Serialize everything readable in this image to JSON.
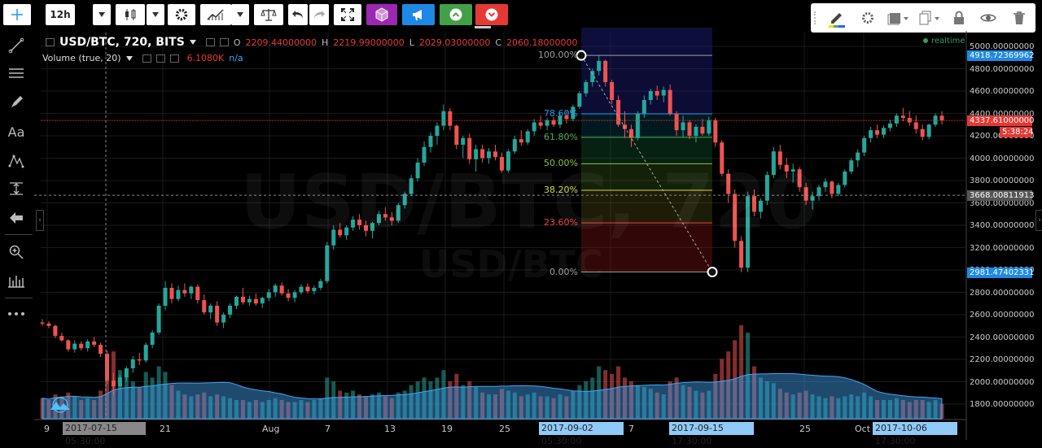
{
  "toolbar": {
    "interval": "12h"
  },
  "legend": {
    "symbol": "USD/BTC, 720, BITS",
    "o_label": "O",
    "o_value": "2209.44000000",
    "h_label": "H",
    "h_value": "2219.99000000",
    "l_label": "L",
    "l_value": "2029.03000000",
    "c_label": "C",
    "c_value": "2060.18000000",
    "volume_label": "Volume (true, 20)",
    "volume_value": "6.1080K",
    "volume_na": "n/a"
  },
  "realtime": "realtime",
  "watermark": {
    "main": "USD/BTC, 720",
    "sub": "USD/BTC"
  },
  "colors": {
    "up": "#26a69a",
    "down": "#ef5350",
    "accent": "#1e88e5",
    "price_line": "#e53935"
  },
  "price_axis": {
    "ticks": [
      "5000.00000000",
      "4800.00000000",
      "4600.00000000",
      "4400.00000000",
      "4200.00000000",
      "4000.00000000",
      "3800.00000000",
      "3600.00000000",
      "3400.00000000",
      "3200.00000000",
      "3000.00000000",
      "2800.00000000",
      "2600.00000000",
      "2400.00000000",
      "2200.00000000",
      "2000.00000000",
      "1800.00000000"
    ],
    "marker_top": "4918.72369962",
    "marker_current": "4337.61000000",
    "marker_countdown": "5:38:24",
    "marker_cross": "3668.00811913",
    "marker_bottom": "2981.47402331"
  },
  "time_axis": {
    "ticks": [
      "9",
      "21",
      "Aug",
      "7",
      "13",
      "19",
      "25",
      "7",
      "25",
      "Oct"
    ],
    "highlight_cross": "2017-07-15 05:30:00",
    "highlight_start": "2017-09-02 05:30:00",
    "highlight_end": "2017-09-15 17:30:00",
    "highlight_last": "2017-10-06 17:30:00"
  },
  "fib": {
    "levels": [
      {
        "label": "100.00%",
        "value": 4918.72,
        "color": "#9e9e9e"
      },
      {
        "label": "78.60%",
        "value": 4396.0,
        "color": "#2196f3"
      },
      {
        "label": "61.80%",
        "value": 4186.0,
        "color": "#4caf50"
      },
      {
        "label": "50.00%",
        "value": 3950.0,
        "color": "#8bc34a"
      },
      {
        "label": "38.20%",
        "value": 3713.0,
        "color": "#cddc39"
      },
      {
        "label": "23.60%",
        "value": 3421.0,
        "color": "#f44336"
      },
      {
        "label": "0.00%",
        "value": 2981.47,
        "color": "#9e9e9e"
      }
    ]
  },
  "chart_data": {
    "type": "candlestick",
    "ylim": [
      1700,
      5100
    ],
    "columns": [
      "o",
      "h",
      "l",
      "c",
      "v"
    ],
    "candles": [
      [
        2530,
        2560,
        2500,
        2520,
        1.1
      ],
      [
        2520,
        2540,
        2480,
        2500,
        1.0
      ],
      [
        2500,
        2510,
        2390,
        2410,
        1.3
      ],
      [
        2410,
        2440,
        2360,
        2370,
        1.2
      ],
      [
        2370,
        2380,
        2270,
        2290,
        1.4
      ],
      [
        2290,
        2370,
        2260,
        2340,
        1.2
      ],
      [
        2340,
        2360,
        2280,
        2300,
        1.0
      ],
      [
        2300,
        2380,
        2270,
        2360,
        1.1
      ],
      [
        2360,
        2400,
        2310,
        2330,
        1.0
      ],
      [
        2330,
        2350,
        2220,
        2250,
        1.5
      ],
      [
        2250,
        2280,
        1980,
        2010,
        3.0
      ],
      [
        2010,
        2080,
        1880,
        1960,
        3.6
      ],
      [
        1960,
        2060,
        1930,
        2040,
        2.6
      ],
      [
        2040,
        2140,
        2000,
        2120,
        2.3
      ],
      [
        2120,
        2230,
        2080,
        2200,
        2.0
      ],
      [
        2200,
        2260,
        2150,
        2190,
        1.7
      ],
      [
        2190,
        2350,
        2170,
        2330,
        2.5
      ],
      [
        2330,
        2460,
        2300,
        2440,
        2.2
      ],
      [
        2440,
        2700,
        2420,
        2680,
        2.8
      ],
      [
        2680,
        2900,
        2640,
        2840,
        2.5
      ],
      [
        2840,
        2880,
        2700,
        2740,
        1.8
      ],
      [
        2740,
        2860,
        2720,
        2820,
        1.5
      ],
      [
        2820,
        2880,
        2760,
        2790,
        1.3
      ],
      [
        2790,
        2860,
        2740,
        2850,
        1.2
      ],
      [
        2850,
        2870,
        2700,
        2730,
        1.3
      ],
      [
        2730,
        2780,
        2600,
        2620,
        1.4
      ],
      [
        2620,
        2700,
        2560,
        2680,
        1.2
      ],
      [
        2680,
        2720,
        2500,
        2530,
        1.3
      ],
      [
        2530,
        2620,
        2480,
        2600,
        1.2
      ],
      [
        2600,
        2700,
        2570,
        2680,
        1.1
      ],
      [
        2680,
        2770,
        2650,
        2760,
        1.0
      ],
      [
        2760,
        2840,
        2690,
        2710,
        1.0
      ],
      [
        2710,
        2770,
        2680,
        2740,
        0.9
      ],
      [
        2740,
        2790,
        2680,
        2700,
        1.0
      ],
      [
        2700,
        2760,
        2660,
        2750,
        0.9
      ],
      [
        2750,
        2830,
        2720,
        2800,
        1.0
      ],
      [
        2800,
        2880,
        2760,
        2860,
        1.1
      ],
      [
        2860,
        2890,
        2770,
        2790,
        1.0
      ],
      [
        2790,
        2830,
        2720,
        2750,
        0.9
      ],
      [
        2750,
        2820,
        2710,
        2800,
        0.9
      ],
      [
        2800,
        2870,
        2780,
        2850,
        1.0
      ],
      [
        2850,
        2880,
        2790,
        2810,
        0.9
      ],
      [
        2810,
        2860,
        2780,
        2840,
        1.0
      ],
      [
        2840,
        2920,
        2820,
        2900,
        1.1
      ],
      [
        2900,
        3250,
        2880,
        3220,
        2.2
      ],
      [
        3220,
        3400,
        3180,
        3360,
        2.0
      ],
      [
        3360,
        3420,
        3290,
        3310,
        1.5
      ],
      [
        3310,
        3400,
        3270,
        3380,
        1.4
      ],
      [
        3380,
        3480,
        3350,
        3450,
        1.5
      ],
      [
        3450,
        3500,
        3360,
        3400,
        1.3
      ],
      [
        3400,
        3440,
        3300,
        3350,
        1.2
      ],
      [
        3350,
        3430,
        3280,
        3420,
        1.3
      ],
      [
        3420,
        3530,
        3400,
        3500,
        1.4
      ],
      [
        3500,
        3560,
        3440,
        3470,
        1.2
      ],
      [
        3470,
        3520,
        3400,
        3440,
        1.1
      ],
      [
        3440,
        3600,
        3420,
        3580,
        1.4
      ],
      [
        3580,
        3700,
        3550,
        3680,
        1.5
      ],
      [
        3680,
        3850,
        3660,
        3820,
        1.8
      ],
      [
        3820,
        4000,
        3790,
        3960,
        2.0
      ],
      [
        3960,
        4150,
        3930,
        4100,
        2.2
      ],
      [
        4100,
        4230,
        4050,
        4200,
        2.0
      ],
      [
        4200,
        4320,
        4120,
        4290,
        2.2
      ],
      [
        4290,
        4480,
        4250,
        4420,
        2.6
      ],
      [
        4420,
        4450,
        4250,
        4290,
        2.0
      ],
      [
        4290,
        4300,
        4080,
        4120,
        2.4
      ],
      [
        4120,
        4200,
        4000,
        4180,
        1.8
      ],
      [
        4180,
        4220,
        3950,
        3990,
        2.0
      ],
      [
        3990,
        4120,
        3880,
        4080,
        1.7
      ],
      [
        4080,
        4120,
        3960,
        4000,
        1.4
      ],
      [
        4000,
        4090,
        3950,
        4060,
        1.3
      ],
      [
        4060,
        4120,
        3980,
        4010,
        1.3
      ],
      [
        4010,
        4050,
        3870,
        3890,
        1.6
      ],
      [
        3890,
        4080,
        3870,
        4060,
        1.5
      ],
      [
        4060,
        4200,
        4040,
        4170,
        1.4
      ],
      [
        4170,
        4250,
        4110,
        4140,
        1.2
      ],
      [
        4140,
        4260,
        4120,
        4240,
        1.3
      ],
      [
        4240,
        4350,
        4200,
        4320,
        1.4
      ],
      [
        4320,
        4380,
        4260,
        4290,
        1.2
      ],
      [
        4290,
        4360,
        4250,
        4340,
        1.2
      ],
      [
        4340,
        4370,
        4280,
        4300,
        1.1
      ],
      [
        4300,
        4400,
        4270,
        4380,
        1.3
      ],
      [
        4380,
        4420,
        4310,
        4350,
        1.2
      ],
      [
        4350,
        4480,
        4330,
        4460,
        1.5
      ],
      [
        4460,
        4600,
        4440,
        4580,
        1.8
      ],
      [
        4580,
        4700,
        4550,
        4680,
        2.0
      ],
      [
        4680,
        4800,
        4640,
        4780,
        2.2
      ],
      [
        4780,
        4918,
        4740,
        4870,
        2.8
      ],
      [
        4870,
        4880,
        4640,
        4680,
        2.6
      ],
      [
        4680,
        4700,
        4480,
        4520,
        2.4
      ],
      [
        4520,
        4560,
        4280,
        4300,
        2.8
      ],
      [
        4300,
        4420,
        4180,
        4260,
        2.2
      ],
      [
        4260,
        4300,
        4100,
        4180,
        2.0
      ],
      [
        4180,
        4420,
        4160,
        4400,
        1.8
      ],
      [
        4400,
        4560,
        4360,
        4520,
        1.7
      ],
      [
        4520,
        4620,
        4480,
        4600,
        1.6
      ],
      [
        4600,
        4650,
        4520,
        4560,
        1.4
      ],
      [
        4560,
        4640,
        4500,
        4610,
        1.3
      ],
      [
        4610,
        4660,
        4380,
        4400,
        2.0
      ],
      [
        4400,
        4420,
        4200,
        4250,
        2.2
      ],
      [
        4250,
        4380,
        4180,
        4320,
        1.8
      ],
      [
        4320,
        4340,
        4170,
        4200,
        1.7
      ],
      [
        4200,
        4300,
        4140,
        4280,
        1.5
      ],
      [
        4280,
        4350,
        4200,
        4220,
        1.4
      ],
      [
        4220,
        4370,
        4200,
        4340,
        1.5
      ],
      [
        4340,
        4360,
        4100,
        4140,
        2.4
      ],
      [
        4140,
        4160,
        3840,
        3860,
        3.2
      ],
      [
        3860,
        3900,
        3600,
        3680,
        3.6
      ],
      [
        3680,
        3720,
        3200,
        3260,
        4.2
      ],
      [
        3260,
        3300,
        2981,
        3020,
        5.0
      ],
      [
        3020,
        3700,
        2981,
        3660,
        4.6
      ],
      [
        3660,
        3720,
        3480,
        3520,
        2.8
      ],
      [
        3520,
        3640,
        3460,
        3620,
        2.2
      ],
      [
        3620,
        3880,
        3580,
        3850,
        2.0
      ],
      [
        3850,
        4100,
        3820,
        4060,
        1.9
      ],
      [
        4060,
        4120,
        3900,
        3940,
        1.6
      ],
      [
        3940,
        4000,
        3820,
        3880,
        1.4
      ],
      [
        3880,
        3950,
        3780,
        3900,
        1.3
      ],
      [
        3900,
        3920,
        3700,
        3740,
        1.4
      ],
      [
        3740,
        3780,
        3580,
        3620,
        1.5
      ],
      [
        3620,
        3700,
        3540,
        3660,
        1.3
      ],
      [
        3660,
        3760,
        3620,
        3740,
        1.2
      ],
      [
        3740,
        3820,
        3700,
        3790,
        1.1
      ],
      [
        3790,
        3800,
        3640,
        3680,
        1.2
      ],
      [
        3680,
        3780,
        3660,
        3760,
        1.1
      ],
      [
        3760,
        3900,
        3740,
        3880,
        1.2
      ],
      [
        3880,
        4000,
        3860,
        3980,
        1.3
      ],
      [
        3980,
        4080,
        3920,
        4050,
        1.2
      ],
      [
        4050,
        4200,
        4020,
        4180,
        1.4
      ],
      [
        4180,
        4280,
        4140,
        4250,
        1.2
      ],
      [
        4250,
        4300,
        4180,
        4210,
        1.0
      ],
      [
        4210,
        4290,
        4180,
        4270,
        1.0
      ],
      [
        4270,
        4340,
        4240,
        4310,
        1.0
      ],
      [
        4310,
        4400,
        4280,
        4380,
        1.1
      ],
      [
        4380,
        4450,
        4330,
        4360,
        1.0
      ],
      [
        4360,
        4420,
        4290,
        4320,
        0.9
      ],
      [
        4320,
        4380,
        4220,
        4260,
        1.0
      ],
      [
        4260,
        4300,
        4160,
        4190,
        1.0
      ],
      [
        4190,
        4310,
        4170,
        4300,
        0.9
      ],
      [
        4300,
        4400,
        4280,
        4380,
        1.0
      ],
      [
        4380,
        4420,
        4300,
        4337.61,
        0.8
      ]
    ]
  }
}
